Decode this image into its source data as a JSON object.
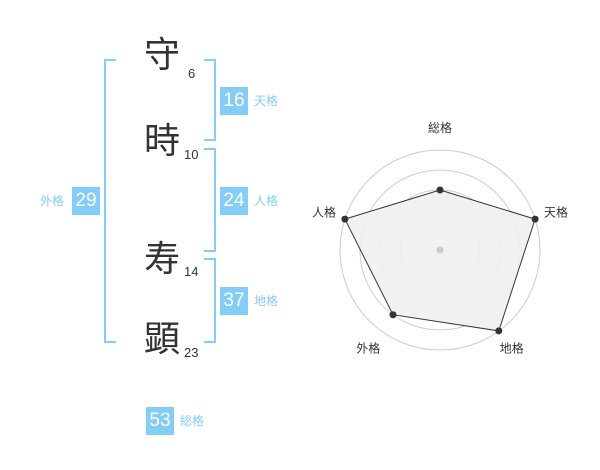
{
  "name": [
    {
      "char": "守",
      "strokes": "6"
    },
    {
      "char": "時",
      "strokes": "10"
    },
    {
      "char": "寿",
      "strokes": "14"
    },
    {
      "char": "顕",
      "strokes": "23"
    }
  ],
  "kaku": {
    "tenkaku": {
      "label": "天格",
      "value": "16"
    },
    "jinkaku": {
      "label": "人格",
      "value": "24"
    },
    "chikaku": {
      "label": "地格",
      "value": "37"
    },
    "gaikaku": {
      "label": "外格",
      "value": "29"
    },
    "soukaku": {
      "label": "総格",
      "value": "53"
    }
  },
  "colors": {
    "accent": "#84cdf6",
    "fill": "#f0f0f0",
    "line": "#333333"
  },
  "chart_data": {
    "type": "radar",
    "axes": [
      "総格",
      "天格",
      "地格",
      "外格",
      "人格"
    ],
    "values": [
      3,
      5,
      5,
      4,
      5
    ],
    "range": [
      0,
      5
    ],
    "rings": 5
  }
}
